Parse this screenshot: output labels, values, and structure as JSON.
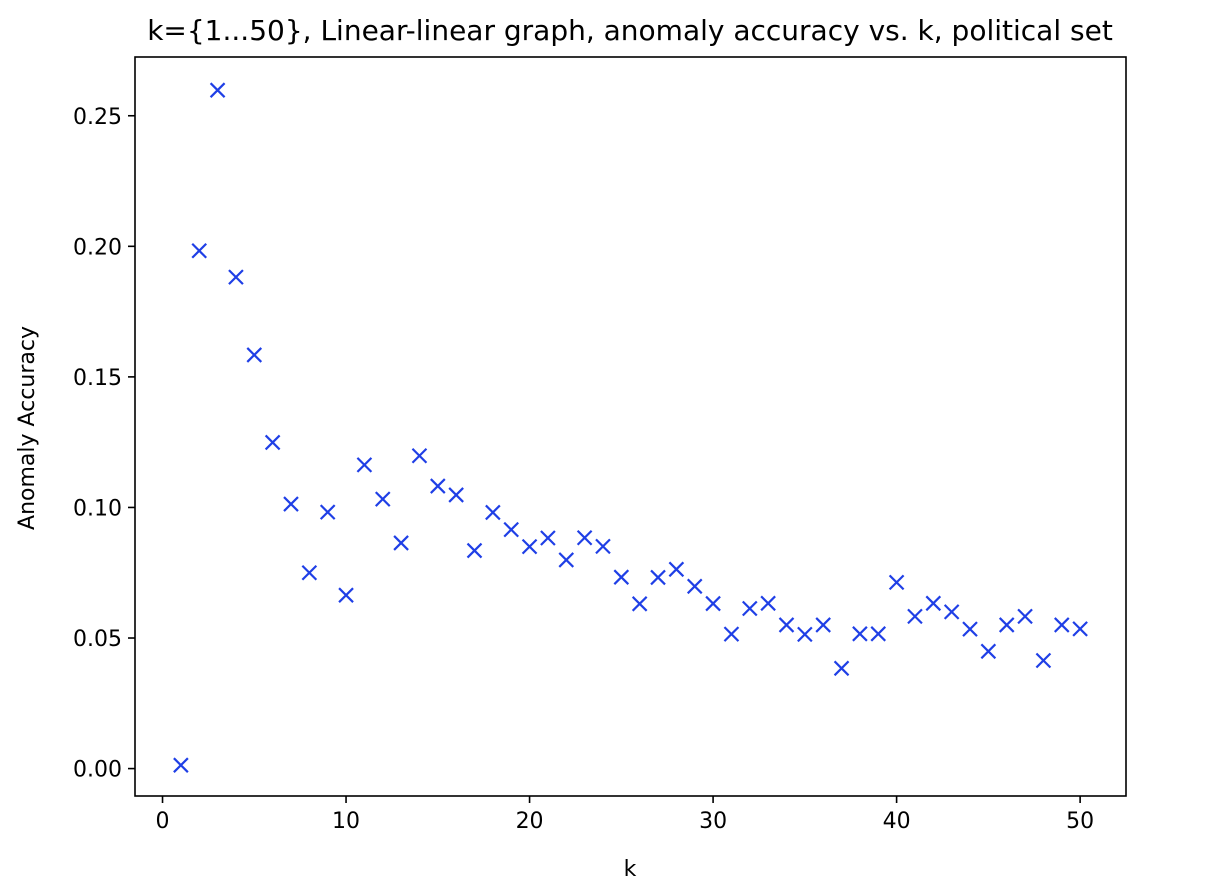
{
  "chart_data": {
    "type": "scatter",
    "title": "k={1...50}, Linear-linear graph, anomaly accuracy vs. k, political set",
    "xlabel": "k",
    "ylabel": "Anomaly Accuracy",
    "xlim": [
      -1.5,
      52.5
    ],
    "ylim": [
      -0.0105,
      0.2725
    ],
    "xticks": [
      0,
      10,
      20,
      30,
      40,
      50
    ],
    "xtick_labels": [
      "0",
      "10",
      "20",
      "30",
      "40",
      "50"
    ],
    "yticks": [
      0.0,
      0.05,
      0.1,
      0.15,
      0.2,
      0.25
    ],
    "ytick_labels": [
      "0.00",
      "0.05",
      "0.10",
      "0.15",
      "0.20",
      "0.25"
    ],
    "grid": false,
    "marker": "x",
    "marker_color": "#1f3fe6",
    "series": [
      {
        "x": [
          1,
          2,
          3,
          4,
          5,
          6,
          7,
          8,
          9,
          10,
          11,
          12,
          13,
          14,
          15,
          16,
          17,
          18,
          19,
          20,
          21,
          22,
          23,
          24,
          25,
          26,
          27,
          28,
          29,
          30,
          31,
          32,
          33,
          34,
          35,
          36,
          37,
          38,
          39,
          40,
          41,
          42,
          43,
          44,
          45,
          46,
          47,
          48,
          49,
          50
        ],
        "y": [
          0.0013,
          0.1983,
          0.2598,
          0.1882,
          0.1584,
          0.1249,
          0.1013,
          0.075,
          0.0982,
          0.0664,
          0.1163,
          0.1032,
          0.0864,
          0.1198,
          0.1082,
          0.1048,
          0.0835,
          0.0981,
          0.0915,
          0.085,
          0.0883,
          0.0799,
          0.0884,
          0.0851,
          0.0733,
          0.0631,
          0.0732,
          0.0763,
          0.0698,
          0.0632,
          0.0515,
          0.0613,
          0.0633,
          0.055,
          0.0514,
          0.055,
          0.0384,
          0.0516,
          0.0516,
          0.0713,
          0.0583,
          0.0633,
          0.06,
          0.0534,
          0.0449,
          0.055,
          0.0583,
          0.0414,
          0.055,
          0.0535
        ]
      }
    ]
  }
}
